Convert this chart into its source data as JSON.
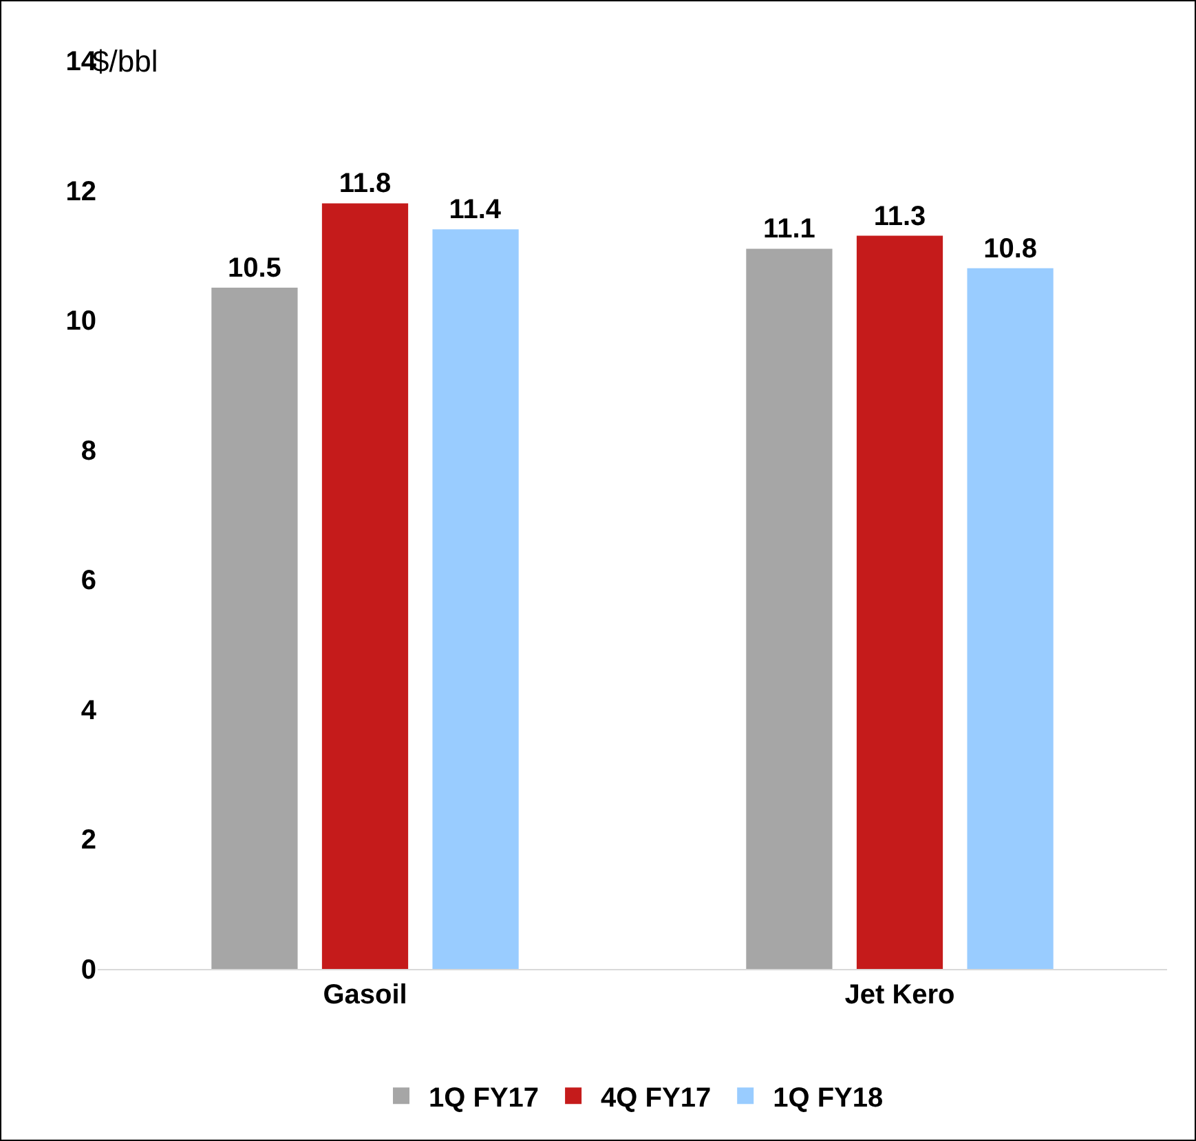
{
  "chart_data": {
    "type": "bar",
    "ylabel": "$/bbl",
    "categories": [
      "Gasoil",
      "Jet Kero"
    ],
    "series": [
      {
        "name": "1Q FY17",
        "color": "#a6a6a6",
        "values": [
          10.5,
          11.1
        ]
      },
      {
        "name": "4Q FY17",
        "color": "#c51b1b",
        "values": [
          11.8,
          11.3
        ]
      },
      {
        "name": "1Q FY18",
        "color": "#99ccff",
        "values": [
          11.4,
          10.8
        ]
      }
    ],
    "ylim": [
      0,
      14
    ],
    "yticks": [
      0,
      2,
      4,
      6,
      8,
      10,
      12,
      14
    ],
    "grid": false,
    "legend": "bottom",
    "data_labels": true
  }
}
